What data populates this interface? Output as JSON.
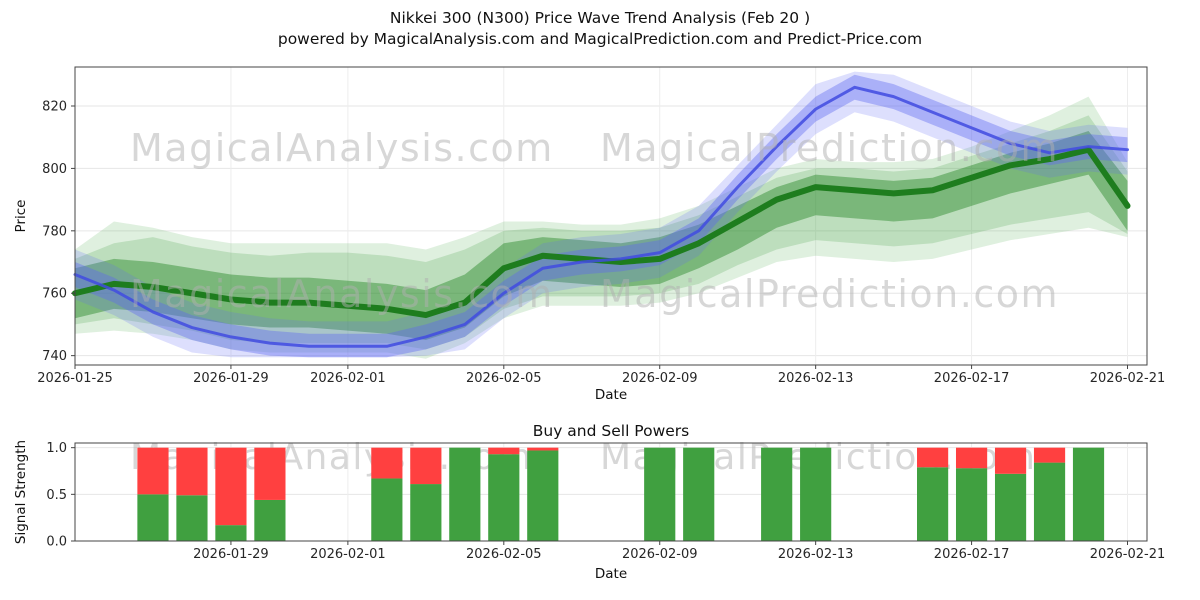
{
  "header": {
    "title": "Nikkei 300 (N300) Price Wave Trend Analysis (Feb 20 )",
    "subtitle": "powered by MagicalAnalysis.com and MagicalPrediction.com and Predict-Price.com"
  },
  "watermarks": {
    "left_text": "MagicalAnalysis.com",
    "right_text": "MagicalPrediction.com",
    "color": "#b0b0b0",
    "opacity": 0.5
  },
  "chart_data": [
    {
      "type": "area",
      "name": "price-wave-trend",
      "xlabel": "Date",
      "ylabel": "Price",
      "xlim": [
        0,
        27.5
      ],
      "ylim": [
        737,
        832.5
      ],
      "yticks": [
        740,
        760,
        780,
        800,
        820
      ],
      "xticks": [
        {
          "day": 0,
          "label": "2026-01-25"
        },
        {
          "day": 4,
          "label": "2026-01-29"
        },
        {
          "day": 7,
          "label": "2026-02-01"
        },
        {
          "day": 11,
          "label": "2026-02-05"
        },
        {
          "day": 15,
          "label": "2026-02-09"
        },
        {
          "day": 19,
          "label": "2026-02-13"
        },
        {
          "day": 23,
          "label": "2026-02-17"
        },
        {
          "day": 27,
          "label": "2026-02-21"
        }
      ],
      "x_days": [
        0,
        1,
        2,
        3,
        4,
        5,
        6,
        7,
        8,
        9,
        10,
        11,
        12,
        13,
        14,
        15,
        16,
        17,
        18,
        19,
        20,
        21,
        22,
        23,
        24,
        25,
        26,
        27
      ],
      "bands": [
        {
          "name": "green-outer",
          "color": "rgba(80,170,80,0.18)",
          "high": [
            774,
            783,
            781,
            778,
            776,
            776,
            776,
            776,
            776,
            774,
            778,
            783,
            783,
            782,
            782,
            784,
            788,
            794,
            800,
            803,
            802,
            802,
            803,
            807,
            812,
            817,
            823,
            802
          ],
          "low": [
            747,
            748,
            747,
            745,
            742,
            741,
            741,
            741,
            741,
            739,
            744,
            752,
            756,
            756,
            756,
            757,
            760,
            765,
            770,
            772,
            771,
            770,
            771,
            774,
            777,
            779,
            781,
            778
          ]
        },
        {
          "name": "green-outer-2",
          "color": "rgba(70,160,70,0.22)",
          "high": [
            771,
            776,
            778,
            775,
            773,
            772,
            773,
            773,
            772,
            770,
            774,
            780,
            781,
            780,
            780,
            781,
            785,
            791,
            797,
            800,
            800,
            799,
            800,
            804,
            808,
            812,
            817,
            799
          ],
          "low": [
            750,
            752,
            750,
            748,
            745,
            744,
            744,
            744,
            744,
            742,
            746,
            755,
            759,
            759,
            759,
            760,
            763,
            769,
            774,
            777,
            776,
            775,
            776,
            779,
            782,
            784,
            786,
            779
          ]
        },
        {
          "name": "green-mid",
          "color": "rgba(40,135,40,0.45)",
          "high": [
            768,
            771,
            770,
            768,
            766,
            765,
            765,
            764,
            763,
            761,
            766,
            776,
            778,
            777,
            776,
            778,
            782,
            788,
            794,
            798,
            797,
            796,
            797,
            801,
            805,
            808,
            812,
            796
          ],
          "low": [
            752,
            755,
            754,
            752,
            750,
            749,
            749,
            748,
            747,
            745,
            749,
            759,
            764,
            763,
            762,
            763,
            768,
            774,
            781,
            785,
            784,
            783,
            784,
            788,
            792,
            795,
            798,
            780
          ]
        },
        {
          "name": "blue-outer",
          "color": "rgba(100,110,245,0.22)",
          "high": [
            774,
            769,
            762,
            757,
            754,
            752,
            751,
            751,
            751,
            754,
            758,
            768,
            776,
            778,
            779,
            781,
            788,
            801,
            814,
            827,
            831,
            830,
            825,
            820,
            815,
            812,
            814,
            813
          ],
          "low": [
            758,
            753,
            746,
            741,
            739.5,
            739.5,
            739.5,
            739.5,
            739.5,
            740,
            742,
            752,
            760,
            762,
            763,
            765,
            772,
            786,
            799,
            811,
            818,
            815,
            810,
            805,
            800,
            797,
            799,
            798
          ]
        },
        {
          "name": "blue-mid",
          "color": "rgba(95,105,240,0.40)",
          "high": [
            770,
            765,
            758,
            753,
            750,
            748,
            747,
            747,
            747,
            750,
            754,
            764,
            772,
            774,
            775,
            777,
            784,
            798,
            811,
            823,
            830,
            827,
            822,
            817,
            812,
            809,
            811,
            810
          ],
          "low": [
            762,
            757,
            750,
            745,
            742,
            740,
            739.5,
            739.5,
            739.5,
            742,
            746,
            756,
            764,
            766,
            767,
            769,
            776,
            790,
            803,
            815,
            822,
            819,
            814,
            809,
            804,
            801,
            803,
            802
          ]
        }
      ],
      "lines": [
        {
          "name": "green-center",
          "color": "#1e7d1e",
          "width": 6,
          "values": [
            760,
            763,
            762,
            760,
            758,
            757,
            757,
            756,
            755,
            753,
            757,
            768,
            772,
            771,
            770,
            771,
            776,
            783,
            790,
            794,
            793,
            792,
            793,
            797,
            801,
            803,
            806,
            788
          ]
        },
        {
          "name": "blue-center",
          "color": "rgba(65,75,225,0.85)",
          "width": 3,
          "values": [
            766,
            761,
            754,
            749,
            746,
            744,
            743,
            743,
            743,
            746,
            750,
            760,
            768,
            770,
            771,
            773,
            780,
            794,
            807,
            819,
            826,
            823,
            818,
            813,
            808,
            805,
            807,
            806
          ]
        }
      ]
    },
    {
      "type": "bar",
      "name": "buy-sell-powers",
      "title": "Buy and Sell Powers",
      "xlabel": "Date",
      "ylabel": "Signal Strength",
      "xlim": [
        0,
        27.5
      ],
      "ylim": [
        0,
        1.05
      ],
      "yticks": [
        0,
        0.5,
        1
      ],
      "ytick_labels": [
        "0.0",
        "0.5",
        "1.0"
      ],
      "xticks": [
        {
          "day": 4,
          "label": "2026-01-29"
        },
        {
          "day": 7,
          "label": "2026-02-01"
        },
        {
          "day": 11,
          "label": "2026-02-05"
        },
        {
          "day": 15,
          "label": "2026-02-09"
        },
        {
          "day": 19,
          "label": "2026-02-13"
        },
        {
          "day": 23,
          "label": "2026-02-17"
        },
        {
          "day": 27,
          "label": "2026-02-21"
        }
      ],
      "bar_width_days": 0.8,
      "colors": {
        "buy": "#40a040",
        "sell": "#ff4040"
      },
      "bars": [
        {
          "day": 2,
          "date": "2026-01-27",
          "buy": 0.5,
          "sell": 0.5
        },
        {
          "day": 3,
          "date": "2026-01-28",
          "buy": 0.49,
          "sell": 0.51
        },
        {
          "day": 4,
          "date": "2026-01-29",
          "buy": 0.17,
          "sell": 0.83
        },
        {
          "day": 5,
          "date": "2026-01-30",
          "buy": 0.44,
          "sell": 0.56
        },
        {
          "day": 8,
          "date": "2026-02-02",
          "buy": 0.67,
          "sell": 0.33
        },
        {
          "day": 9,
          "date": "2026-02-03",
          "buy": 0.61,
          "sell": 0.39
        },
        {
          "day": 10,
          "date": "2026-02-04",
          "buy": 1.0,
          "sell": 0.0
        },
        {
          "day": 11,
          "date": "2026-02-05",
          "buy": 0.93,
          "sell": 0.07
        },
        {
          "day": 12,
          "date": "2026-02-06",
          "buy": 0.97,
          "sell": 0.03
        },
        {
          "day": 15,
          "date": "2026-02-09",
          "buy": 1.0,
          "sell": 0.0
        },
        {
          "day": 16,
          "date": "2026-02-10",
          "buy": 1.0,
          "sell": 0.0
        },
        {
          "day": 18,
          "date": "2026-02-12",
          "buy": 1.0,
          "sell": 0.0
        },
        {
          "day": 19,
          "date": "2026-02-13",
          "buy": 1.0,
          "sell": 0.0
        },
        {
          "day": 22,
          "date": "2026-02-16",
          "buy": 0.79,
          "sell": 0.21
        },
        {
          "day": 23,
          "date": "2026-02-17",
          "buy": 0.78,
          "sell": 0.22
        },
        {
          "day": 24,
          "date": "2026-02-18",
          "buy": 0.72,
          "sell": 0.28
        },
        {
          "day": 25,
          "date": "2026-02-19",
          "buy": 0.84,
          "sell": 0.16
        },
        {
          "day": 26,
          "date": "2026-02-20",
          "buy": 1.0,
          "sell": 0.0
        }
      ]
    }
  ]
}
